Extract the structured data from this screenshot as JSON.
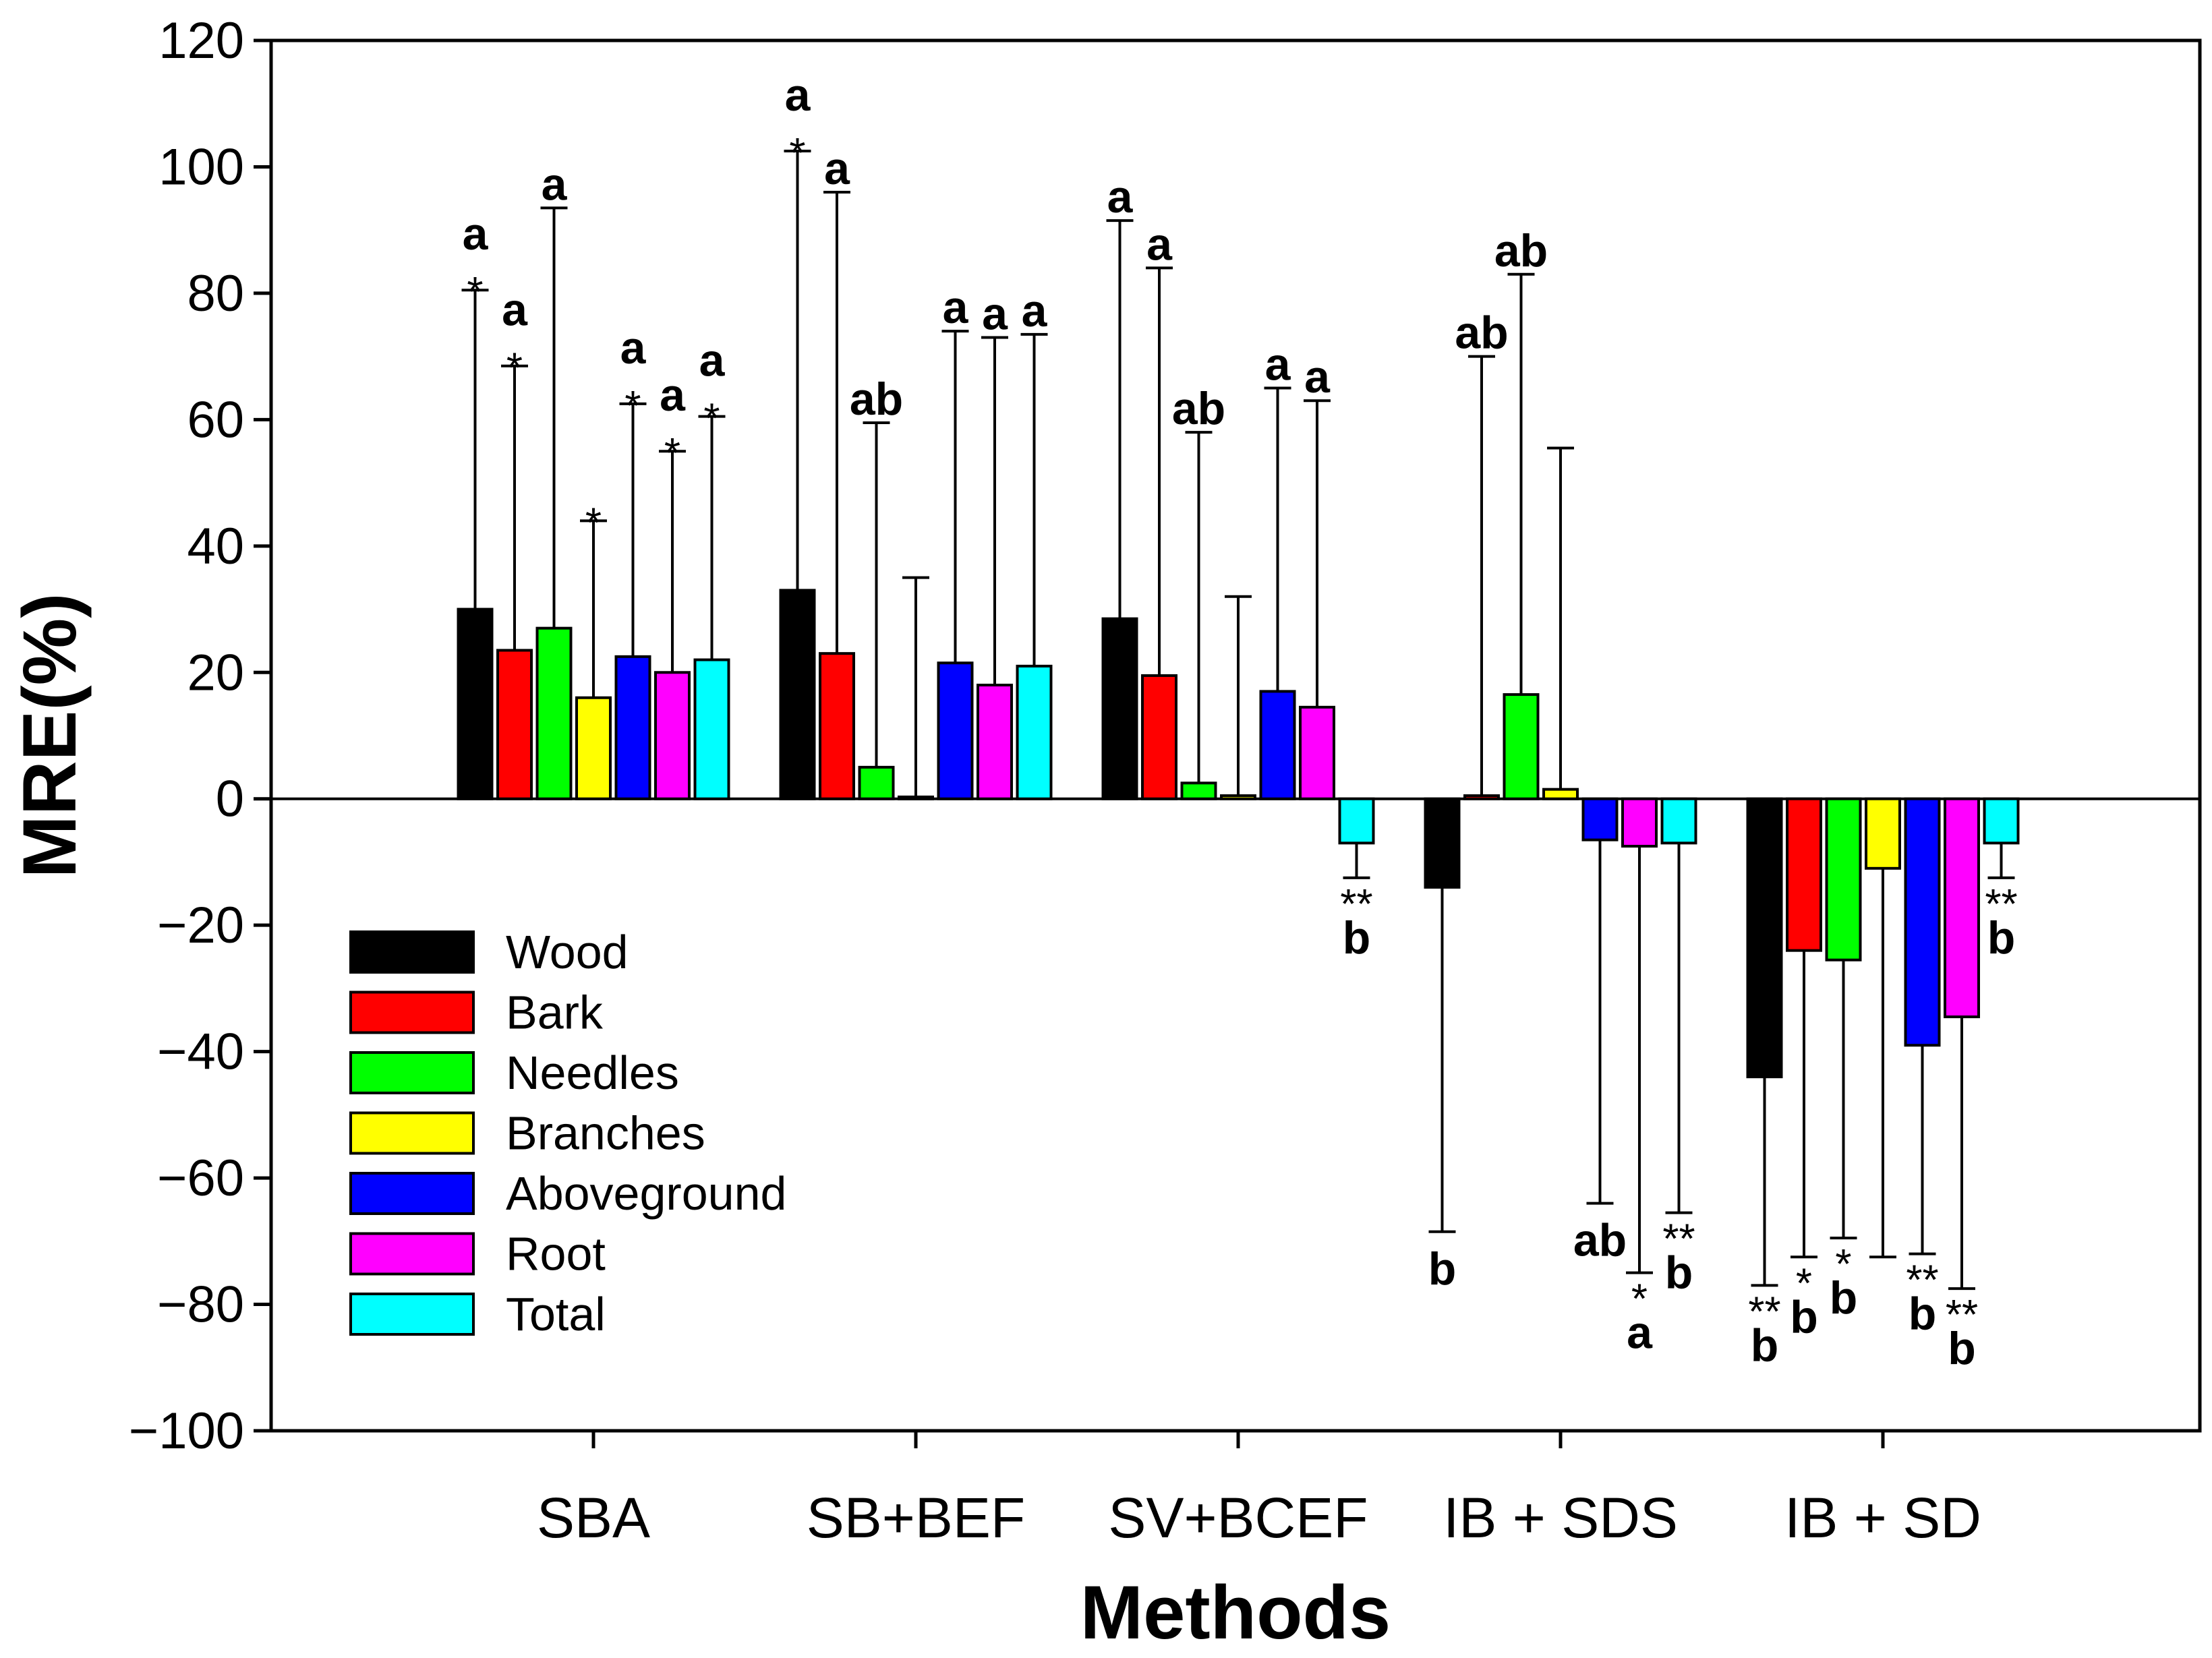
{
  "chart_data": {
    "type": "bar",
    "title": "",
    "xlabel": "Methods",
    "ylabel": "MRE(%)",
    "ylim": [
      -100,
      120
    ],
    "yticks": [
      -100,
      -80,
      -60,
      -40,
      -20,
      0,
      20,
      40,
      60,
      80,
      100,
      120
    ],
    "categories": [
      "SBA",
      "SB+BEF",
      "SV+BCEF",
      "IB + SDS",
      "IB + SD"
    ],
    "legend_position": "lower-left",
    "grid": false,
    "series": [
      {
        "name": "Wood",
        "color": "#000000",
        "values": [
          30,
          33,
          28.5,
          -14,
          -44
        ],
        "error_end": [
          80.5,
          102.5,
          91.5,
          -68.5,
          -77
        ],
        "letters": [
          "a",
          "a",
          "a",
          "b",
          "b"
        ],
        "stars": [
          "*",
          "*",
          "",
          "",
          "**"
        ]
      },
      {
        "name": "Bark",
        "color": "#ff0000",
        "values": [
          23.5,
          23,
          19.5,
          0.5,
          -24
        ],
        "error_end": [
          68.5,
          96,
          84,
          70,
          -72.5
        ],
        "letters": [
          "a",
          "a",
          "a",
          "ab",
          "b"
        ],
        "stars": [
          "*",
          "",
          "",
          "",
          "*"
        ]
      },
      {
        "name": "Needles",
        "color": "#00ff00",
        "values": [
          27,
          5,
          2.5,
          16.5,
          -25.5
        ],
        "error_end": [
          93.5,
          59.5,
          58,
          83,
          -69.5
        ],
        "letters": [
          "a",
          "ab",
          "ab",
          "ab",
          "b"
        ],
        "stars": [
          "",
          "",
          "",
          "",
          "*"
        ]
      },
      {
        "name": "Branches",
        "color": "#ffff00",
        "values": [
          16,
          0.3,
          0.5,
          1.5,
          -11
        ],
        "error_end": [
          44,
          35,
          32,
          55.5,
          -72.5
        ],
        "letters": [
          "",
          "",
          "",
          "",
          ""
        ],
        "stars": [
          "*",
          "",
          "",
          "",
          ""
        ]
      },
      {
        "name": "Aboveground",
        "color": "#0000ff",
        "values": [
          22.5,
          21.5,
          17,
          -6.5,
          -39
        ],
        "error_end": [
          62.5,
          74,
          65,
          -64,
          -72
        ],
        "letters": [
          "a",
          "a",
          "a",
          "ab",
          "b"
        ],
        "stars": [
          "*",
          "",
          "",
          "",
          "**"
        ]
      },
      {
        "name": "Root",
        "color": "#ff00ff",
        "values": [
          20,
          18,
          14.5,
          -7.5,
          -34.5
        ],
        "error_end": [
          55,
          73,
          63,
          -75,
          -77.5
        ],
        "letters": [
          "a",
          "a",
          "a",
          "a",
          "b"
        ],
        "stars": [
          "*",
          "",
          "",
          "*",
          "**"
        ]
      },
      {
        "name": "Total",
        "color": "#00ffff",
        "values": [
          22,
          21,
          -7,
          -7,
          -7
        ],
        "error_end": [
          60.5,
          73.5,
          -12.5,
          -65.5,
          -12.5
        ],
        "letters": [
          "a",
          "a",
          "b",
          "b",
          "b"
        ],
        "stars": [
          "*",
          "",
          "**",
          "**",
          "**"
        ]
      }
    ]
  }
}
